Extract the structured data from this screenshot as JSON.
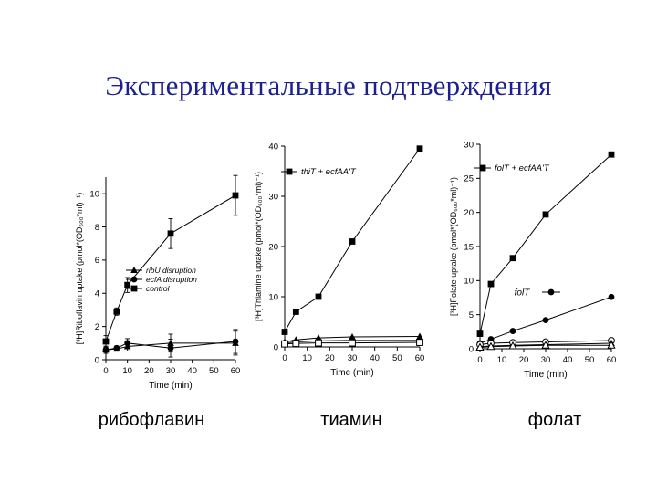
{
  "slide": {
    "title": "Экспериментальные подтверждения",
    "captions": [
      "рибофлавин",
      "тиамин",
      "фолат"
    ]
  },
  "colors": {
    "title": "#1d1f8f",
    "ink": "#000000"
  },
  "chart_data": [
    {
      "type": "line",
      "substance": "рибофлавин",
      "xlabel": "Time (min)",
      "ylabel": "[³H]Riboflavin uptake (pmol*(OD₆₀₀*ml)⁻¹)",
      "xlim": [
        0,
        60
      ],
      "ylim": [
        0,
        11
      ],
      "xticks": [
        0,
        10,
        20,
        30,
        40,
        50,
        60
      ],
      "yticks": [
        0,
        2,
        4,
        6,
        8,
        10
      ],
      "legend_position": "middle-left",
      "series": [
        {
          "name": "ribU disruption",
          "marker": "triangle",
          "error_bars": true,
          "x": [
            0,
            5,
            10,
            30,
            60
          ],
          "y": [
            0.6,
            0.65,
            0.8,
            1.0,
            1.0
          ]
        },
        {
          "name": "ecfA disruption",
          "marker": "circle",
          "error_bars": true,
          "x": [
            0,
            5,
            10,
            30,
            60
          ],
          "y": [
            0.6,
            0.7,
            1.0,
            0.7,
            1.1
          ]
        },
        {
          "name": "control",
          "marker": "square",
          "error_bars": true,
          "x": [
            0,
            5,
            10,
            30,
            60
          ],
          "y": [
            1.1,
            2.9,
            4.5,
            7.6,
            9.9
          ]
        }
      ]
    },
    {
      "type": "line",
      "substance": "тиамин",
      "xlabel": "Time (min)",
      "ylabel": "[³H]Thiamine uptake (pmol*(OD₆₀₀*ml)⁻¹)",
      "xlim": [
        0,
        60
      ],
      "ylim": [
        0,
        40
      ],
      "xticks": [
        0,
        10,
        20,
        30,
        40,
        50,
        60
      ],
      "yticks": [
        0,
        10,
        20,
        30,
        40
      ],
      "legend_position": "top-left",
      "series": [
        {
          "name": "thiT + ecfAA'T",
          "marker": "square",
          "x": [
            0,
            5,
            15,
            30,
            60
          ],
          "y": [
            3.0,
            7.0,
            10.0,
            21.0,
            39.5
          ]
        },
        {
          "marker": "triangle",
          "x": [
            0,
            5,
            15,
            30,
            60
          ],
          "y": [
            1.0,
            1.4,
            1.8,
            2.0,
            2.1
          ]
        },
        {
          "marker": "circle",
          "x": [
            0,
            5,
            15,
            30,
            60
          ],
          "y": [
            0.8,
            1.0,
            1.2,
            1.3,
            1.3
          ]
        },
        {
          "marker": "square-open",
          "x": [
            0,
            5,
            15,
            30,
            60
          ],
          "y": [
            0.6,
            0.7,
            0.8,
            0.8,
            0.9
          ]
        }
      ]
    },
    {
      "type": "line",
      "substance": "фолат",
      "xlabel": "Time (min)",
      "ylabel": "[³H]Folate uptake (pmol*(OD₆₀₀*ml)⁻¹)",
      "xlim": [
        0,
        60
      ],
      "ylim": [
        0,
        30
      ],
      "xticks": [
        0,
        10,
        20,
        30,
        40,
        50,
        60
      ],
      "yticks": [
        0,
        5,
        10,
        15,
        20,
        25,
        30
      ],
      "legend_position": "top-left",
      "series": [
        {
          "name": "folT + ecfAA'T",
          "marker": "square",
          "x": [
            0,
            5,
            15,
            30,
            60
          ],
          "y": [
            2.2,
            9.5,
            13.3,
            19.7,
            28.5
          ]
        },
        {
          "name": "folT",
          "marker": "circle",
          "x": [
            0,
            5,
            15,
            30,
            60
          ],
          "y": [
            0.8,
            1.4,
            2.6,
            4.2,
            7.6
          ]
        },
        {
          "marker": "circle-open",
          "x": [
            0,
            5,
            15,
            30,
            60
          ],
          "y": [
            0.6,
            0.8,
            0.9,
            1.0,
            1.2
          ]
        },
        {
          "marker": "triangle",
          "x": [
            0,
            5,
            15,
            30,
            60
          ],
          "y": [
            0.3,
            0.4,
            0.5,
            0.6,
            0.8
          ]
        },
        {
          "marker": "triangle-open",
          "x": [
            0,
            5,
            15,
            30,
            60
          ],
          "y": [
            0.2,
            0.3,
            0.4,
            0.5,
            0.5
          ]
        }
      ]
    }
  ]
}
